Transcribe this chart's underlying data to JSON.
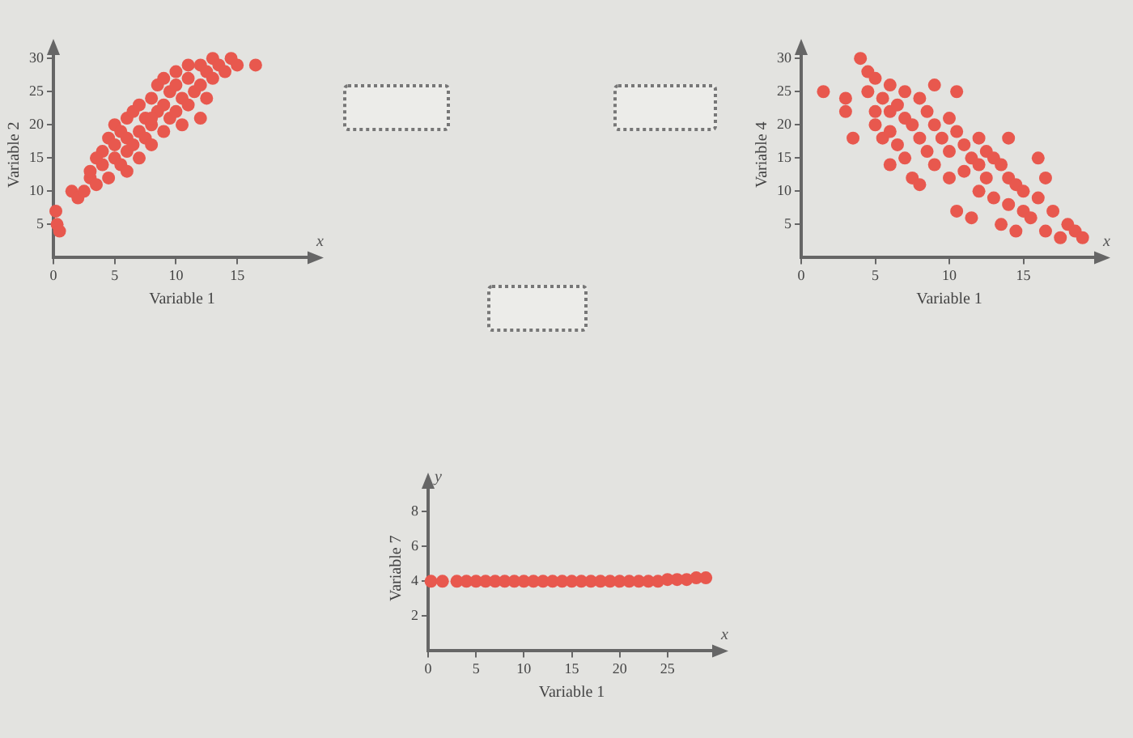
{
  "chart_data": [
    {
      "type": "scatter",
      "xlabel": "Variable 1",
      "ylabel": "Variable 2",
      "annotations": [
        "x"
      ],
      "marker": "circle",
      "xlim": [
        0,
        21
      ],
      "ylim": [
        0,
        31
      ],
      "xticks": [
        0,
        5,
        10,
        15
      ],
      "yticks": [
        5,
        10,
        15,
        20,
        25,
        30
      ],
      "x": [
        0.2,
        0.3,
        0.5,
        1.5,
        2,
        2.5,
        3,
        3,
        3.5,
        4,
        4,
        4.5,
        4.5,
        5,
        5,
        5,
        5.5,
        5.5,
        6,
        6,
        6,
        6.5,
        6.5,
        7,
        7,
        7,
        7.5,
        7.5,
        8,
        8,
        8,
        8.5,
        8.5,
        9,
        9,
        9,
        9.5,
        9.5,
        10,
        10,
        10,
        10.5,
        11,
        11,
        11,
        11.5,
        12,
        12,
        12.5,
        12.5,
        13,
        13,
        13.5,
        14,
        14.5,
        15,
        10.5,
        8,
        6,
        3.5,
        12,
        16.5
      ],
      "series": [
        {
          "color": "#e8584e",
          "values": [
            7,
            5,
            4,
            10,
            9,
            10,
            12,
            13,
            11,
            14,
            16,
            12,
            18,
            15,
            17,
            20,
            14,
            19,
            16,
            18,
            21,
            17,
            22,
            15,
            19,
            23,
            18,
            21,
            17,
            20,
            24,
            22,
            26,
            19,
            23,
            27,
            21,
            25,
            22,
            26,
            28,
            24,
            23,
            27,
            29,
            25,
            26,
            29,
            24,
            28,
            27,
            30,
            29,
            28,
            30,
            29,
            20,
            21,
            13,
            15,
            21,
            29
          ]
        }
      ]
    },
    {
      "type": "scatter",
      "xlabel": "Variable 1",
      "ylabel": "Variable 4",
      "annotations": [
        "x"
      ],
      "marker": "circle",
      "xlim": [
        0,
        20
      ],
      "ylim": [
        0,
        31
      ],
      "xticks": [
        0,
        5,
        10,
        15
      ],
      "yticks": [
        5,
        10,
        15,
        20,
        25,
        30
      ],
      "x": [
        1.5,
        3,
        3,
        3.5,
        4,
        4.5,
        4.5,
        5,
        5,
        5,
        5.5,
        5.5,
        6,
        6,
        6,
        6,
        6.5,
        6.5,
        7,
        7,
        7,
        7.5,
        7.5,
        8,
        8,
        8,
        8.5,
        8.5,
        9,
        9,
        9,
        9.5,
        10,
        10,
        10,
        10.5,
        10.5,
        10.5,
        11,
        11,
        11.5,
        11.5,
        12,
        12,
        12,
        12.5,
        12.5,
        13,
        13,
        13.5,
        13.5,
        14,
        14,
        14,
        14.5,
        14.5,
        15,
        15,
        15.5,
        16,
        16,
        16.5,
        16.5,
        17,
        17.5,
        18,
        18.5,
        19
      ],
      "series": [
        {
          "color": "#e8584e",
          "values": [
            25,
            24,
            22,
            18,
            30,
            28,
            25,
            27,
            22,
            20,
            24,
            18,
            26,
            22,
            19,
            14,
            23,
            17,
            25,
            21,
            15,
            20,
            12,
            24,
            18,
            11,
            22,
            16,
            26,
            20,
            14,
            18,
            21,
            16,
            12,
            25,
            19,
            7,
            17,
            13,
            15,
            6,
            18,
            14,
            10,
            16,
            12,
            15,
            9,
            14,
            5,
            18,
            12,
            8,
            11,
            4,
            10,
            7,
            6,
            15,
            9,
            4,
            12,
            7,
            3,
            5,
            4,
            3
          ]
        }
      ]
    },
    {
      "type": "scatter",
      "xlabel": "Variable 1",
      "ylabel": "Variable 7",
      "annotations": [
        "y",
        "x"
      ],
      "marker": "circle",
      "xlim": [
        0,
        30
      ],
      "ylim": [
        0,
        9.5
      ],
      "xticks": [
        0,
        5,
        10,
        15,
        20,
        25
      ],
      "yticks": [
        2,
        4,
        6,
        8
      ],
      "x": [
        0.3,
        1.5,
        3,
        4,
        5,
        6,
        7,
        8,
        9,
        10,
        11,
        12,
        13,
        14,
        15,
        16,
        17,
        18,
        19,
        20,
        21,
        22,
        23,
        24,
        25,
        26,
        27,
        28,
        29
      ],
      "series": [
        {
          "color": "#e8584e",
          "values": [
            4,
            4,
            4,
            4,
            4,
            4,
            4,
            4,
            4,
            4,
            4,
            4,
            4,
            4,
            4,
            4,
            4,
            4,
            4,
            4,
            4,
            4,
            4,
            4,
            4.1,
            4.1,
            4.1,
            4.2,
            4.2
          ]
        }
      ]
    }
  ]
}
